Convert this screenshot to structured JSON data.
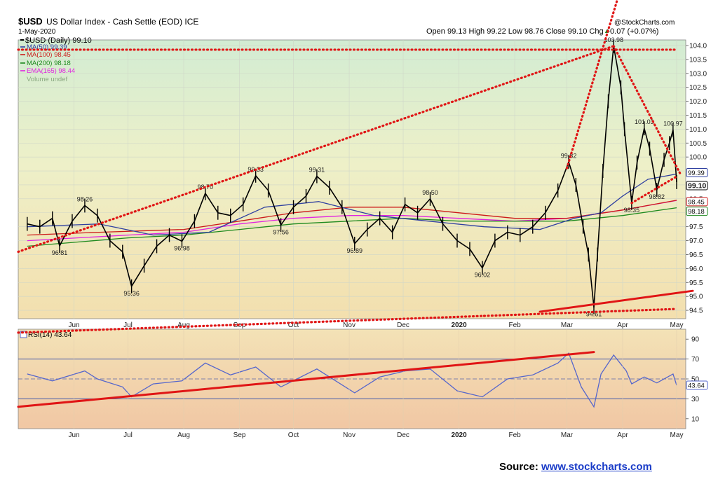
{
  "header": {
    "symbol": "$USD",
    "name": "US Dollar Index - Cash Settle (EOD) ICE",
    "date": "1-May-2020",
    "credit": "@StockCharts.com",
    "quote": "Open 99.13  High 99.22  Low 98.76  Close 99.10  Chg +0.07 (+0.07%)",
    "quote_arrow": "▲"
  },
  "colors": {
    "price": "#000000",
    "ma50": "#2e3fa0",
    "ma100": "#cc1a1a",
    "ma200": "#1e8a1e",
    "ema165": "#e024e0",
    "trendline": "#e01515",
    "rsi": "#5566cc"
  },
  "chart_data": [
    {
      "type": "line",
      "panel": "price",
      "ylim": [
        94.2,
        104.2
      ],
      "yticks": [
        "94.5",
        "95.0",
        "95.5",
        "96.0",
        "96.5",
        "97.0",
        "97.5",
        "98.0",
        "98.5",
        "99.0",
        "99.5",
        "100.0",
        "100.5",
        "101.0",
        "101.5",
        "102.0",
        "102.5",
        "103.0",
        "103.5",
        "104.0"
      ],
      "x_start": "2020-05-01",
      "xticks": [
        {
          "date": "2019-06-01",
          "label": "Jun",
          "bold": false
        },
        {
          "date": "2019-07-01",
          "label": "Jul",
          "bold": false
        },
        {
          "date": "2019-08-01",
          "label": "Aug",
          "bold": false
        },
        {
          "date": "2019-09-01",
          "label": "Sep",
          "bold": false
        },
        {
          "date": "2019-10-01",
          "label": "Oct",
          "bold": false
        },
        {
          "date": "2019-11-01",
          "label": "Nov",
          "bold": false
        },
        {
          "date": "2019-12-01",
          "label": "Dec",
          "bold": false
        },
        {
          "date": "2020-01-01",
          "label": "2020",
          "bold": true
        },
        {
          "date": "2020-02-01",
          "label": "Feb",
          "bold": false
        },
        {
          "date": "2020-03-01",
          "label": "Mar",
          "bold": false
        },
        {
          "date": "2020-04-01",
          "label": "Apr",
          "bold": false
        },
        {
          "date": "2020-05-01",
          "label": "May",
          "bold": false
        }
      ],
      "series": [
        {
          "name": "$USD (Daily) 99.10",
          "key": "price",
          "points": [
            [
              "2019-05-06",
              97.6
            ],
            [
              "2019-05-13",
              97.5
            ],
            [
              "2019-05-20",
              97.8
            ],
            [
              "2019-05-24",
              96.81
            ],
            [
              "2019-05-31",
              97.7
            ],
            [
              "2019-06-07",
              98.26
            ],
            [
              "2019-06-14",
              97.9
            ],
            [
              "2019-06-21",
              97.0
            ],
            [
              "2019-06-28",
              96.6
            ],
            [
              "2019-07-03",
              95.36
            ],
            [
              "2019-07-10",
              96.1
            ],
            [
              "2019-07-17",
              96.8
            ],
            [
              "2019-07-24",
              97.2
            ],
            [
              "2019-07-31",
              96.98
            ],
            [
              "2019-08-07",
              97.7
            ],
            [
              "2019-08-13",
              98.7
            ],
            [
              "2019-08-20",
              98.0
            ],
            [
              "2019-08-27",
              97.9
            ],
            [
              "2019-09-03",
              98.3
            ],
            [
              "2019-09-10",
              99.33
            ],
            [
              "2019-09-17",
              98.8
            ],
            [
              "2019-09-24",
              97.56
            ],
            [
              "2019-10-01",
              98.2
            ],
            [
              "2019-10-08",
              98.6
            ],
            [
              "2019-10-14",
              99.31
            ],
            [
              "2019-10-21",
              98.9
            ],
            [
              "2019-10-28",
              98.2
            ],
            [
              "2019-11-04",
              96.89
            ],
            [
              "2019-11-11",
              97.4
            ],
            [
              "2019-11-18",
              97.8
            ],
            [
              "2019-11-25",
              97.3
            ],
            [
              "2019-12-02",
              98.3
            ],
            [
              "2019-12-09",
              98.0
            ],
            [
              "2019-12-16",
              98.5
            ],
            [
              "2019-12-23",
              97.6
            ],
            [
              "2019-12-31",
              97.0
            ],
            [
              "2020-01-07",
              96.7
            ],
            [
              "2020-01-14",
              96.02
            ],
            [
              "2020-01-21",
              97.0
            ],
            [
              "2020-01-28",
              97.3
            ],
            [
              "2020-02-04",
              97.2
            ],
            [
              "2020-02-11",
              97.5
            ],
            [
              "2020-02-18",
              98.0
            ],
            [
              "2020-02-25",
              98.8
            ],
            [
              "2020-03-02",
              99.82
            ],
            [
              "2020-03-06",
              99.0
            ],
            [
              "2020-03-10",
              97.5
            ],
            [
              "2020-03-13",
              96.5
            ],
            [
              "2020-03-16",
              94.61
            ],
            [
              "2020-03-18",
              96.5
            ],
            [
              "2020-03-21",
              99.5
            ],
            [
              "2020-03-24",
              102.0
            ],
            [
              "2020-03-27",
              103.98
            ],
            [
              "2020-03-31",
              102.5
            ],
            [
              "2020-04-02",
              101.0
            ],
            [
              "2020-04-06",
              98.35
            ],
            [
              "2020-04-09",
              99.8
            ],
            [
              "2020-04-13",
              101.03
            ],
            [
              "2020-04-16",
              100.3
            ],
            [
              "2020-04-20",
              98.82
            ],
            [
              "2020-04-24",
              99.9
            ],
            [
              "2020-04-27",
              100.5
            ],
            [
              "2020-04-29",
              100.97
            ],
            [
              "2020-05-01",
              99.1
            ]
          ]
        },
        {
          "name": "MA(50) 99.39",
          "key": "ma50",
          "points": [
            [
              "2019-05-06",
              97.5
            ],
            [
              "2019-06-15",
              97.6
            ],
            [
              "2019-07-15",
              97.2
            ],
            [
              "2019-08-15",
              97.3
            ],
            [
              "2019-09-15",
              98.2
            ],
            [
              "2019-10-15",
              98.4
            ],
            [
              "2019-11-15",
              97.9
            ],
            [
              "2019-12-15",
              97.7
            ],
            [
              "2020-01-15",
              97.5
            ],
            [
              "2020-02-15",
              97.4
            ],
            [
              "2020-03-05",
              97.8
            ],
            [
              "2020-03-20",
              98.0
            ],
            [
              "2020-04-01",
              98.6
            ],
            [
              "2020-04-15",
              99.2
            ],
            [
              "2020-05-01",
              99.39
            ]
          ]
        },
        {
          "name": "MA(100) 98.45",
          "key": "ma100",
          "points": [
            [
              "2019-05-06",
              97.2
            ],
            [
              "2019-06-15",
              97.3
            ],
            [
              "2019-08-01",
              97.4
            ],
            [
              "2019-09-01",
              97.7
            ],
            [
              "2019-10-01",
              98.0
            ],
            [
              "2019-11-01",
              98.2
            ],
            [
              "2019-12-01",
              98.2
            ],
            [
              "2020-01-01",
              98.0
            ],
            [
              "2020-02-01",
              97.8
            ],
            [
              "2020-03-01",
              97.8
            ],
            [
              "2020-04-01",
              98.1
            ],
            [
              "2020-05-01",
              98.45
            ]
          ]
        },
        {
          "name": "MA(200) 98.18",
          "key": "ma200",
          "points": [
            [
              "2019-05-06",
              96.8
            ],
            [
              "2019-07-01",
              97.1
            ],
            [
              "2019-08-01",
              97.2
            ],
            [
              "2019-09-01",
              97.4
            ],
            [
              "2019-10-01",
              97.6
            ],
            [
              "2019-11-01",
              97.7
            ],
            [
              "2019-12-01",
              97.8
            ],
            [
              "2020-01-01",
              97.7
            ],
            [
              "2020-02-01",
              97.7
            ],
            [
              "2020-03-01",
              97.7
            ],
            [
              "2020-04-01",
              97.9
            ],
            [
              "2020-05-01",
              98.18
            ]
          ]
        },
        {
          "name": "EMA(165) 98.44",
          "key": "ema165",
          "points": [
            [
              "2019-05-06",
              97.0
            ],
            [
              "2019-07-01",
              97.2
            ],
            [
              "2019-08-01",
              97.3
            ],
            [
              "2019-09-01",
              97.6
            ],
            [
              "2019-10-01",
              97.8
            ],
            [
              "2019-11-01",
              97.9
            ],
            [
              "2019-12-01",
              97.9
            ],
            [
              "2020-01-01",
              97.8
            ],
            [
              "2020-02-01",
              97.7
            ],
            [
              "2020-03-01",
              97.8
            ],
            [
              "2020-04-01",
              98.1
            ],
            [
              "2020-05-01",
              98.44
            ]
          ]
        }
      ],
      "volume_label": "Volume undef",
      "annotations": [
        {
          "date": "2019-05-24",
          "value": 96.81,
          "label": "96.81",
          "pos": "below"
        },
        {
          "date": "2019-06-07",
          "value": 98.26,
          "label": "98.26",
          "pos": "above"
        },
        {
          "date": "2019-07-03",
          "value": 95.36,
          "label": "95.36",
          "pos": "below"
        },
        {
          "date": "2019-07-31",
          "value": 96.98,
          "label": "96.98",
          "pos": "below"
        },
        {
          "date": "2019-08-13",
          "value": 98.7,
          "label": "98.70",
          "pos": "above"
        },
        {
          "date": "2019-09-10",
          "value": 99.33,
          "label": "99.33",
          "pos": "above"
        },
        {
          "date": "2019-09-24",
          "value": 97.56,
          "label": "97.56",
          "pos": "below"
        },
        {
          "date": "2019-10-14",
          "value": 99.31,
          "label": "99.31",
          "pos": "above"
        },
        {
          "date": "2019-11-04",
          "value": 96.89,
          "label": "96.89",
          "pos": "below"
        },
        {
          "date": "2019-12-16",
          "value": 98.5,
          "label": "98.50",
          "pos": "above"
        },
        {
          "date": "2020-01-14",
          "value": 96.02,
          "label": "96.02",
          "pos": "below"
        },
        {
          "date": "2020-03-02",
          "value": 99.82,
          "label": "99.82",
          "pos": "above"
        },
        {
          "date": "2020-03-16",
          "value": 94.61,
          "label": "94.61",
          "pos": "below"
        },
        {
          "date": "2020-03-27",
          "value": 103.98,
          "label": "103.98",
          "pos": "above"
        },
        {
          "date": "2020-04-06",
          "value": 98.35,
          "label": "98.35",
          "pos": "below"
        },
        {
          "date": "2020-04-13",
          "value": 101.03,
          "label": "101.03",
          "pos": "above"
        },
        {
          "date": "2020-04-20",
          "value": 98.82,
          "label": "98.82",
          "pos": "below"
        },
        {
          "date": "2020-04-29",
          "value": 100.97,
          "label": "100.97",
          "pos": "above"
        }
      ],
      "value_tags": [
        {
          "value": 99.39,
          "label": "99.39",
          "key": "ma50"
        },
        {
          "value": 99.1,
          "label": "99.10",
          "key": "price"
        },
        {
          "value": 98.45,
          "label": "98.45",
          "key": "ma100"
        },
        {
          "value": 98.18,
          "label": "98.18",
          "key": "ma200"
        }
      ],
      "trendlines": [
        {
          "style": "dotted",
          "from": [
            "2019-05-01",
            96.6
          ],
          "to": [
            "2020-03-27",
            103.98
          ]
        },
        {
          "style": "dotted",
          "from": [
            "2019-05-01",
            103.85
          ],
          "to": [
            "2020-05-01",
            103.85
          ]
        },
        {
          "style": "dotted",
          "from": [
            "2020-03-01",
            99.6
          ],
          "to": [
            "2020-04-02",
            106.5
          ]
        },
        {
          "style": "dotted",
          "from": [
            "2020-03-27",
            103.98
          ],
          "to": [
            "2020-05-03",
            99.4
          ]
        },
        {
          "style": "dotted",
          "from": [
            "2020-04-06",
            98.35
          ],
          "to": [
            "2020-05-01",
            99.3
          ]
        },
        {
          "style": "dotted",
          "from": [
            "2020-01-15",
            94.3
          ],
          "to": [
            "2020-05-01",
            94.55
          ]
        },
        {
          "style": "dotted",
          "from": [
            "2019-05-01",
            93.7
          ],
          "to": [
            "2020-01-15",
            94.3
          ]
        },
        {
          "style": "solid",
          "from": [
            "2020-02-15",
            94.45
          ],
          "to": [
            "2020-05-10",
            95.2
          ]
        }
      ]
    },
    {
      "type": "line",
      "panel": "rsi",
      "title": "RSI(14) 43.64",
      "ylim": [
        0,
        100
      ],
      "yticks": [
        "10",
        "30",
        "50",
        "70",
        "90"
      ],
      "levels": [
        30,
        50,
        70
      ],
      "last_value": "43.64",
      "series": [
        {
          "name": "RSI(14) 43.64",
          "key": "rsi",
          "points": [
            [
              "2019-05-06",
              55
            ],
            [
              "2019-05-20",
              48
            ],
            [
              "2019-06-07",
              58
            ],
            [
              "2019-06-14",
              50
            ],
            [
              "2019-06-28",
              42
            ],
            [
              "2019-07-03",
              32
            ],
            [
              "2019-07-15",
              45
            ],
            [
              "2019-07-31",
              48
            ],
            [
              "2019-08-13",
              66
            ],
            [
              "2019-08-27",
              54
            ],
            [
              "2019-09-10",
              62
            ],
            [
              "2019-09-24",
              42
            ],
            [
              "2019-10-14",
              60
            ],
            [
              "2019-11-04",
              36
            ],
            [
              "2019-11-18",
              52
            ],
            [
              "2019-12-02",
              58
            ],
            [
              "2019-12-16",
              60
            ],
            [
              "2019-12-31",
              38
            ],
            [
              "2020-01-14",
              32
            ],
            [
              "2020-01-28",
              50
            ],
            [
              "2020-02-11",
              54
            ],
            [
              "2020-02-25",
              66
            ],
            [
              "2020-03-02",
              76
            ],
            [
              "2020-03-09",
              42
            ],
            [
              "2020-03-16",
              22
            ],
            [
              "2020-03-20",
              55
            ],
            [
              "2020-03-27",
              74
            ],
            [
              "2020-04-03",
              58
            ],
            [
              "2020-04-06",
              45
            ],
            [
              "2020-04-13",
              52
            ],
            [
              "2020-04-20",
              46
            ],
            [
              "2020-04-29",
              55
            ],
            [
              "2020-05-01",
              43.64
            ]
          ]
        }
      ],
      "trendlines": [
        {
          "style": "solid",
          "from": [
            "2019-05-01",
            22
          ],
          "to": [
            "2020-03-16",
            77
          ]
        }
      ]
    }
  ],
  "source": {
    "prefix": "Source: ",
    "link_text": "www.stockcharts.com"
  }
}
